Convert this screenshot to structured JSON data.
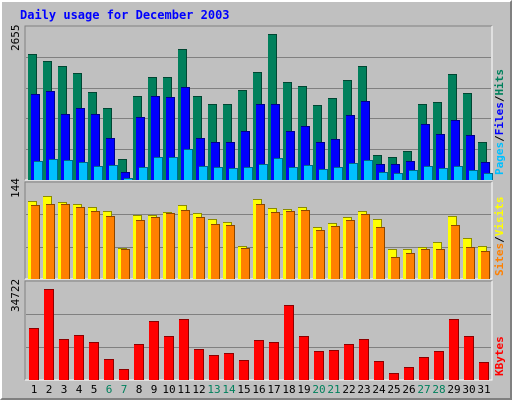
{
  "title": "Daily usage for December 2003",
  "colors": {
    "background": "#C0C0C0",
    "title": "#0000FF",
    "hits": "#00805C",
    "files": "#0000FF",
    "pages": "#00C0FF",
    "visits": "#FFFF00",
    "sites": "#FF8000",
    "kbytes": "#FF0000",
    "weekend_label": "#00805C",
    "weekday_label": "#000000"
  },
  "chart_data": [
    {
      "type": "bar",
      "ylabel_max": "2655",
      "ylim": [
        0,
        2655
      ],
      "grid": true,
      "right_label": [
        {
          "text": "Pages",
          "color": "#00C0FF"
        },
        {
          "text": "/",
          "color": "#000000"
        },
        {
          "text": "Files",
          "color": "#0000FF"
        },
        {
          "text": "/",
          "color": "#000000"
        },
        {
          "text": "Hits",
          "color": "#00805C"
        }
      ],
      "categories": [
        "1",
        "2",
        "3",
        "4",
        "5",
        "6",
        "7",
        "8",
        "9",
        "10",
        "11",
        "12",
        "13",
        "14",
        "15",
        "16",
        "17",
        "18",
        "19",
        "20",
        "21",
        "22",
        "23",
        "24",
        "25",
        "26",
        "27",
        "28",
        "29",
        "30",
        "31"
      ],
      "series": [
        {
          "name": "Hits",
          "values": [
            2300,
            2170,
            2070,
            1950,
            1600,
            1310,
            390,
            1530,
            1880,
            1880,
            2380,
            1520,
            1380,
            1380,
            1640,
            1960,
            2655,
            1790,
            1710,
            1370,
            1490,
            1810,
            2080,
            460,
            420,
            530,
            1380,
            1410,
            1930,
            1580,
            700
          ]
        },
        {
          "name": "Files",
          "values": [
            1570,
            1610,
            1200,
            1310,
            1200,
            760,
            150,
            1140,
            1520,
            1510,
            1690,
            760,
            700,
            700,
            890,
            1380,
            1380,
            900,
            980,
            690,
            750,
            1180,
            1440,
            300,
            300,
            340,
            1020,
            830,
            1090,
            810,
            330
          ]
        },
        {
          "name": "Pages",
          "values": [
            340,
            390,
            370,
            330,
            260,
            280,
            30,
            240,
            410,
            410,
            570,
            260,
            240,
            220,
            240,
            300,
            400,
            240,
            270,
            200,
            230,
            310,
            360,
            140,
            120,
            190,
            260,
            220,
            260,
            190,
            130
          ]
        }
      ]
    },
    {
      "type": "bar",
      "ylabel_max": "144",
      "ylim": [
        0,
        144
      ],
      "grid": true,
      "right_label": [
        {
          "text": "Sites",
          "color": "#FF8000"
        },
        {
          "text": "/",
          "color": "#000000"
        },
        {
          "text": "Visits",
          "color": "#FFFF00"
        }
      ],
      "categories": [
        "1",
        "2",
        "3",
        "4",
        "5",
        "6",
        "7",
        "8",
        "9",
        "10",
        "11",
        "12",
        "13",
        "14",
        "15",
        "16",
        "17",
        "18",
        "19",
        "20",
        "21",
        "22",
        "23",
        "24",
        "25",
        "26",
        "27",
        "28",
        "29",
        "30",
        "31"
      ],
      "series": [
        {
          "name": "Visits",
          "values": [
            127,
            135,
            124,
            122,
            117,
            110,
            50,
            103,
            104,
            109,
            119,
            106,
            97,
            92,
            54,
            130,
            115,
            113,
            117,
            84,
            91,
            101,
            110,
            97,
            48,
            48,
            52,
            60,
            102,
            66,
            53
          ]
        },
        {
          "name": "Sites",
          "values": [
            119,
            122,
            121,
            116,
            110,
            102,
            48,
            95,
            100,
            106,
            111,
            100,
            89,
            87,
            50,
            122,
            109,
            110,
            112,
            80,
            85,
            95,
            105,
            84,
            36,
            42,
            48,
            48,
            88,
            52,
            46
          ]
        }
      ]
    },
    {
      "type": "bar",
      "ylabel_max": "34722",
      "ylim": [
        0,
        34722
      ],
      "grid": true,
      "right_label": [
        {
          "text": "KBytes",
          "color": "#FF0000"
        }
      ],
      "categories": [
        "1",
        "2",
        "3",
        "4",
        "5",
        "6",
        "7",
        "8",
        "9",
        "10",
        "11",
        "12",
        "13",
        "14",
        "15",
        "16",
        "17",
        "18",
        "19",
        "20",
        "21",
        "22",
        "23",
        "24",
        "25",
        "26",
        "27",
        "28",
        "29",
        "30",
        "31"
      ],
      "series": [
        {
          "name": "KBytes",
          "values": [
            19800,
            34722,
            15500,
            17000,
            14600,
            8200,
            4100,
            13900,
            22400,
            16800,
            23100,
            11800,
            9700,
            10300,
            7600,
            15200,
            14500,
            28700,
            16800,
            11200,
            11500,
            13900,
            15700,
            7300,
            2800,
            5100,
            8800,
            11200,
            23400,
            16700,
            6800
          ]
        }
      ]
    }
  ]
}
